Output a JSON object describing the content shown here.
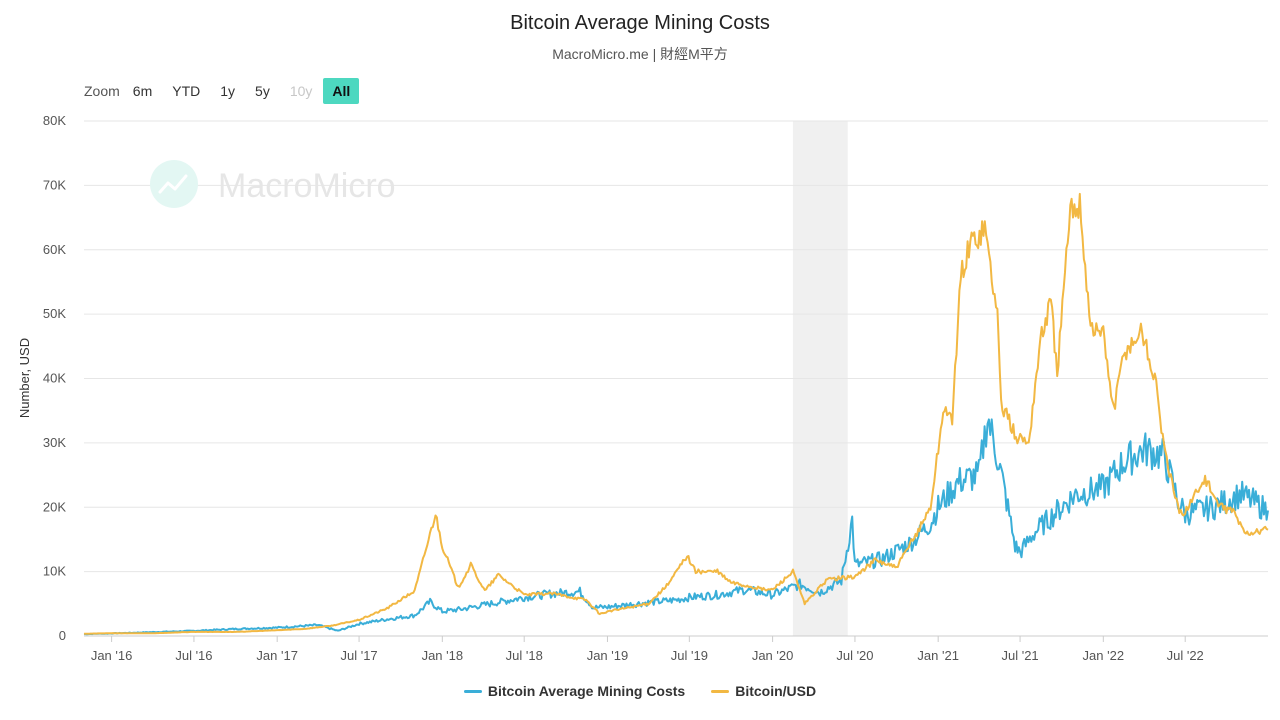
{
  "header": {
    "title": "Bitcoin Average Mining Costs",
    "subtitle": "MacroMicro.me | 財經M平方"
  },
  "zoom": {
    "label": "Zoom",
    "buttons": [
      {
        "label": "6m",
        "state": "normal"
      },
      {
        "label": "YTD",
        "state": "normal"
      },
      {
        "label": "1y",
        "state": "normal"
      },
      {
        "label": "5y",
        "state": "normal"
      },
      {
        "label": "10y",
        "state": "disabled"
      },
      {
        "label": "All",
        "state": "active"
      }
    ]
  },
  "watermark": "MacroMicro",
  "colors": {
    "mining": "#3aaed8",
    "btc": "#f2b843",
    "zoom_active": "#4dd8c0",
    "recession_band": "#f0f0f0"
  },
  "legend": {
    "mining_label": "Bitcoin Average Mining Costs",
    "btc_label": "Bitcoin/USD"
  },
  "chart_data": {
    "type": "line",
    "title": "Bitcoin Average Mining Costs",
    "subtitle": "MacroMicro.me | 財經M平方",
    "ylabel": "Number, USD",
    "ylim": [
      0,
      80000
    ],
    "yticks": [
      0,
      10000,
      20000,
      30000,
      40000,
      50000,
      60000,
      70000,
      80000
    ],
    "ytick_labels": [
      "0",
      "10K",
      "20K",
      "30K",
      "40K",
      "50K",
      "60K",
      "70K",
      "80K"
    ],
    "xlim": [
      "2015-11-01",
      "2022-12-31"
    ],
    "xticks": [
      {
        "date": "2016-01-01",
        "label": "Jan '16"
      },
      {
        "date": "2016-07-01",
        "label": "Jul '16"
      },
      {
        "date": "2017-01-01",
        "label": "Jan '17"
      },
      {
        "date": "2017-07-01",
        "label": "Jul '17"
      },
      {
        "date": "2018-01-01",
        "label": "Jan '18"
      },
      {
        "date": "2018-07-01",
        "label": "Jul '18"
      },
      {
        "date": "2019-01-01",
        "label": "Jan '19"
      },
      {
        "date": "2019-07-01",
        "label": "Jul '19"
      },
      {
        "date": "2020-01-01",
        "label": "Jan '20"
      },
      {
        "date": "2020-07-01",
        "label": "Jul '20"
      },
      {
        "date": "2021-01-01",
        "label": "Jan '21"
      },
      {
        "date": "2021-07-01",
        "label": "Jul '21"
      },
      {
        "date": "2022-01-01",
        "label": "Jan '22"
      },
      {
        "date": "2022-07-01",
        "label": "Jul '22"
      }
    ],
    "shaded_region": {
      "start": "2020-02-15",
      "end": "2020-06-15"
    },
    "grid": true,
    "legend_position": "bottom-center",
    "series": [
      {
        "name": "Bitcoin Average Mining Costs",
        "color": "#3aaed8",
        "points": [
          [
            "2015-11-01",
            300
          ],
          [
            "2016-01-01",
            400
          ],
          [
            "2016-04-01",
            600
          ],
          [
            "2016-07-01",
            800
          ],
          [
            "2016-10-01",
            1100
          ],
          [
            "2017-01-01",
            1300
          ],
          [
            "2017-04-01",
            1700
          ],
          [
            "2017-05-15",
            800
          ],
          [
            "2017-07-01",
            1900
          ],
          [
            "2017-09-01",
            2600
          ],
          [
            "2017-11-01",
            3200
          ],
          [
            "2017-12-05",
            5300
          ],
          [
            "2018-01-01",
            3800
          ],
          [
            "2018-02-15",
            4200
          ],
          [
            "2018-04-01",
            4800
          ],
          [
            "2018-06-01",
            5600
          ],
          [
            "2018-07-01",
            6000
          ],
          [
            "2018-09-01",
            6600
          ],
          [
            "2018-11-01",
            6900
          ],
          [
            "2018-12-01",
            4400
          ],
          [
            "2019-01-01",
            4500
          ],
          [
            "2019-04-01",
            5200
          ],
          [
            "2019-06-01",
            5600
          ],
          [
            "2019-07-01",
            6000
          ],
          [
            "2019-09-01",
            6400
          ],
          [
            "2019-11-01",
            7200
          ],
          [
            "2020-01-01",
            6400
          ],
          [
            "2020-03-01",
            8000
          ],
          [
            "2020-04-15",
            6800
          ],
          [
            "2020-06-01",
            8600
          ],
          [
            "2020-06-25",
            18000
          ],
          [
            "2020-07-01",
            11000
          ],
          [
            "2020-09-01",
            12000
          ],
          [
            "2020-11-01",
            14500
          ],
          [
            "2020-12-15",
            17500
          ],
          [
            "2021-01-01",
            20000
          ],
          [
            "2021-02-15",
            24000
          ],
          [
            "2021-04-01",
            25000
          ],
          [
            "2021-04-20",
            34000
          ],
          [
            "2021-05-15",
            27000
          ],
          [
            "2021-06-01",
            21000
          ],
          [
            "2021-06-20",
            14000
          ],
          [
            "2021-07-01",
            13000
          ],
          [
            "2021-08-01",
            16000
          ],
          [
            "2021-09-15",
            19000
          ],
          [
            "2021-11-01",
            22000
          ],
          [
            "2022-01-01",
            23000
          ],
          [
            "2022-02-15",
            27000
          ],
          [
            "2022-04-01",
            29000
          ],
          [
            "2022-05-15",
            28000
          ],
          [
            "2022-06-15",
            21000
          ],
          [
            "2022-07-01",
            19000
          ],
          [
            "2022-09-01",
            20000
          ],
          [
            "2022-11-01",
            22000
          ],
          [
            "2022-12-31",
            19500
          ]
        ]
      },
      {
        "name": "Bitcoin/USD",
        "color": "#f2b843",
        "points": [
          [
            "2015-11-01",
            350
          ],
          [
            "2016-01-01",
            430
          ],
          [
            "2016-04-01",
            420
          ],
          [
            "2016-07-01",
            650
          ],
          [
            "2016-10-01",
            630
          ],
          [
            "2017-01-01",
            900
          ],
          [
            "2017-03-01",
            1100
          ],
          [
            "2017-05-01",
            1600
          ],
          [
            "2017-07-01",
            2500
          ],
          [
            "2017-09-01",
            4300
          ],
          [
            "2017-11-01",
            7000
          ],
          [
            "2017-12-17",
            19000
          ],
          [
            "2018-01-01",
            14000
          ],
          [
            "2018-02-05",
            7500
          ],
          [
            "2018-03-05",
            11000
          ],
          [
            "2018-04-05",
            7000
          ],
          [
            "2018-05-05",
            9500
          ],
          [
            "2018-07-01",
            6400
          ],
          [
            "2018-09-01",
            6600
          ],
          [
            "2018-11-15",
            5600
          ],
          [
            "2018-12-15",
            3400
          ],
          [
            "2019-01-01",
            3800
          ],
          [
            "2019-04-01",
            5000
          ],
          [
            "2019-05-15",
            8000
          ],
          [
            "2019-06-26",
            12500
          ],
          [
            "2019-07-15",
            10000
          ],
          [
            "2019-09-01",
            10000
          ],
          [
            "2019-10-01",
            8300
          ],
          [
            "2019-12-15",
            7200
          ],
          [
            "2020-01-01",
            7200
          ],
          [
            "2020-02-15",
            10000
          ],
          [
            "2020-03-12",
            5000
          ],
          [
            "2020-05-01",
            8800
          ],
          [
            "2020-07-01",
            9200
          ],
          [
            "2020-08-15",
            11800
          ],
          [
            "2020-10-01",
            10600
          ],
          [
            "2020-11-15",
            16000
          ],
          [
            "2020-12-15",
            20000
          ],
          [
            "2021-01-01",
            29000
          ],
          [
            "2021-01-15",
            36000
          ],
          [
            "2021-02-01",
            33000
          ],
          [
            "2021-02-20",
            56000
          ],
          [
            "2021-03-13",
            61000
          ],
          [
            "2021-04-14",
            63500
          ],
          [
            "2021-05-12",
            50000
          ],
          [
            "2021-05-20",
            36000
          ],
          [
            "2021-06-22",
            31000
          ],
          [
            "2021-07-20",
            30000
          ],
          [
            "2021-08-15",
            46000
          ],
          [
            "2021-09-07",
            52000
          ],
          [
            "2021-09-21",
            41000
          ],
          [
            "2021-10-20",
            66000
          ],
          [
            "2021-11-10",
            67500
          ],
          [
            "2021-12-04",
            48000
          ],
          [
            "2022-01-01",
            47000
          ],
          [
            "2022-01-24",
            35000
          ],
          [
            "2022-02-15",
            44000
          ],
          [
            "2022-03-28",
            47500
          ],
          [
            "2022-05-01",
            38000
          ],
          [
            "2022-05-15",
            29000
          ],
          [
            "2022-06-18",
            19000
          ],
          [
            "2022-07-01",
            19500
          ],
          [
            "2022-08-14",
            24500
          ],
          [
            "2022-09-15",
            20000
          ],
          [
            "2022-10-15",
            19500
          ],
          [
            "2022-11-09",
            16000
          ],
          [
            "2022-12-31",
            16500
          ]
        ]
      }
    ]
  }
}
